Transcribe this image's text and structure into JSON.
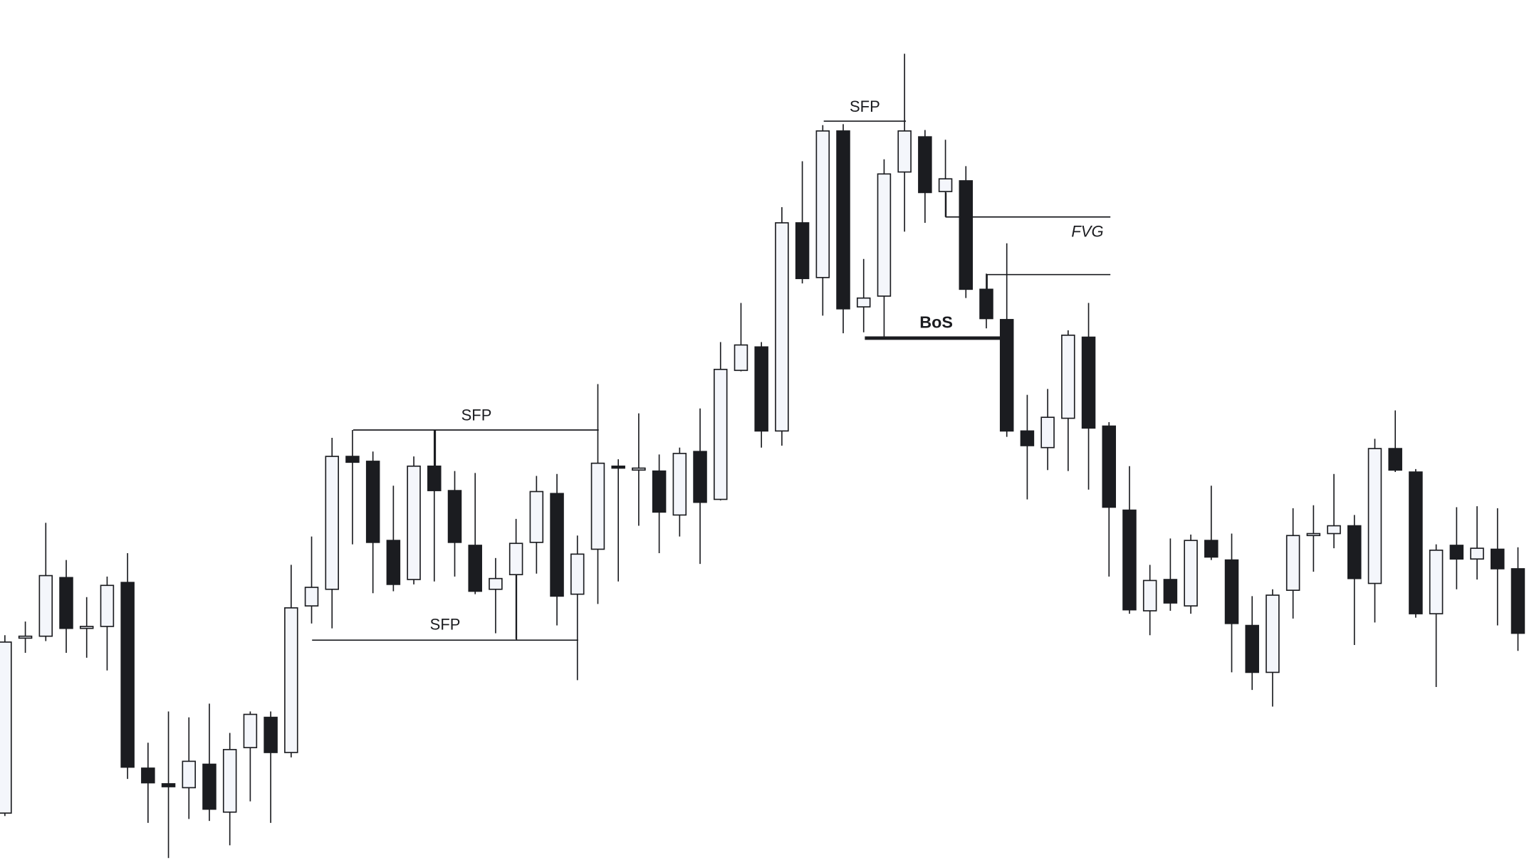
{
  "chart_data": {
    "type": "candlestick",
    "ylim": [
      0,
      880
    ],
    "up_color": "#f4f6fb",
    "down_color": "#1b1c20",
    "outline_color": "#1b1c20",
    "series": [
      {
        "open": [
          48,
          229,
          229,
          289,
          239,
          239,
          284,
          94,
          78,
          74,
          98,
          49,
          115,
          146,
          110,
          260,
          277,
          413,
          408,
          327,
          287,
          403,
          378,
          322,
          277,
          292,
          325,
          375,
          272,
          318,
          403,
          401,
          398,
          353,
          418,
          369,
          501,
          525,
          439,
          652,
          596,
          746,
          566,
          577,
          704,
          740,
          684,
          695,
          584,
          553,
          439,
          422,
          452,
          535,
          444,
          358,
          255,
          287,
          260,
          327,
          307,
          240,
          192,
          276,
          334,
          334,
          342,
          283,
          421,
          397,
          252,
          322,
          308,
          318,
          298
        ],
        "high": [
          230,
          244,
          345,
          307,
          269,
          290,
          314,
          120,
          152,
          146,
          160,
          130,
          152,
          152,
          302,
          331,
          432,
          440,
          418,
          383,
          413,
          440,
          398,
          396,
          309,
          349,
          393,
          395,
          332,
          487,
          410,
          457,
          415,
          422,
          462,
          530,
          570,
          530,
          668,
          715,
          752,
          753,
          615,
          717,
          825,
          747,
          737,
          710,
          600,
          631,
          476,
          482,
          542,
          570,
          448,
          403,
          302,
          329,
          333,
          383,
          334,
          270,
          277,
          360,
          363,
          395,
          353,
          431,
          460,
          400,
          323,
          361,
          362,
          360,
          320
        ],
        "low": [
          45,
          212,
          224,
          212,
          207,
          194,
          83,
          38,
          2,
          42,
          40,
          15,
          60,
          38,
          105,
          242,
          237,
          323,
          273,
          275,
          282,
          285,
          290,
          272,
          232,
          226,
          293,
          240,
          184,
          262,
          285,
          342,
          314,
          331,
          303,
          368,
          500,
          422,
          424,
          590,
          557,
          539,
          540,
          535,
          643,
          652,
          658,
          575,
          544,
          433,
          369,
          399,
          398,
          379,
          290,
          252,
          230,
          255,
          252,
          307,
          192,
          174,
          157,
          247,
          295,
          319,
          220,
          243,
          397,
          248,
          177,
          277,
          287,
          240,
          214
        ],
        "close": [
          223,
          229,
          291,
          237,
          239,
          281,
          95,
          79,
          75,
          101,
          52,
          113,
          149,
          110,
          258,
          279,
          413,
          407,
          325,
          282,
          403,
          378,
          325,
          275,
          288,
          324,
          377,
          270,
          313,
          406,
          401,
          401,
          356,
          416,
          366,
          502,
          527,
          439,
          652,
          595,
          746,
          564,
          575,
          702,
          746,
          683,
          697,
          584,
          554,
          439,
          424,
          453,
          537,
          442,
          361,
          256,
          286,
          263,
          327,
          310,
          242,
          192,
          271,
          332,
          334,
          342,
          288,
          421,
          399,
          252,
          317,
          308,
          319,
          298,
          232
        ]
      }
    ],
    "annotations": [
      {
        "text": "SFP"
      },
      {
        "text": "SFP"
      },
      {
        "text": "SFP"
      },
      {
        "text": "FVG"
      },
      {
        "text": "BoS"
      }
    ]
  }
}
